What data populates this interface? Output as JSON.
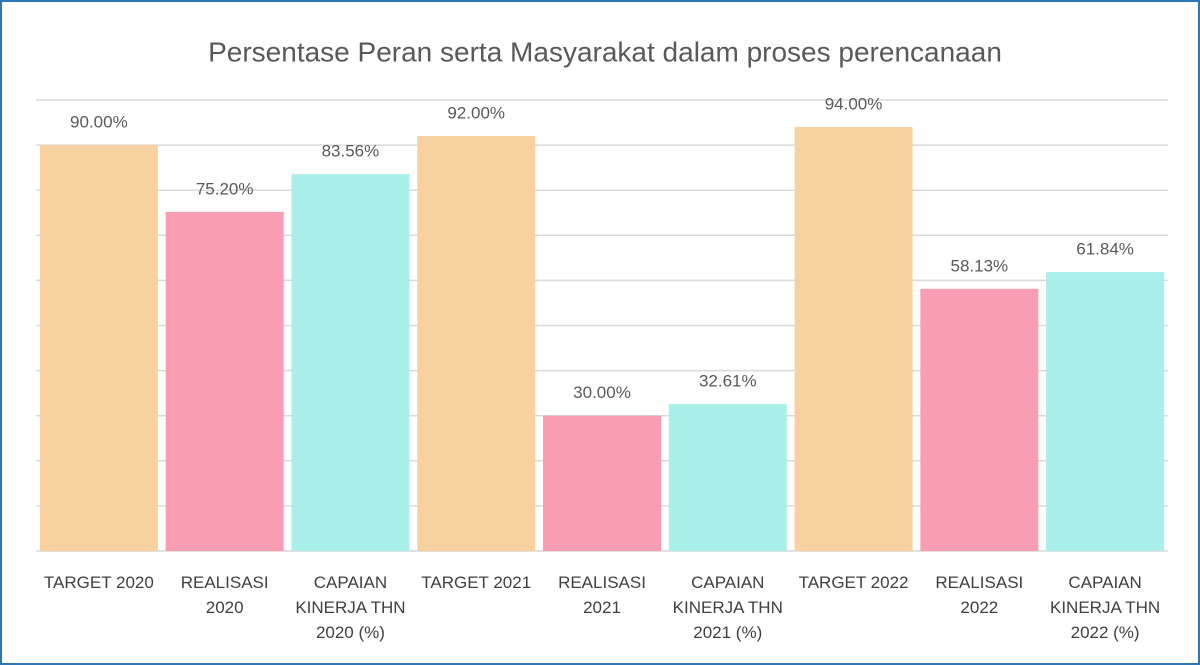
{
  "chart_data": {
    "type": "bar",
    "title": "Persentase Peran serta Masyarakat dalam proses perencanaan",
    "categories": [
      "TARGET 2020",
      "REALISASI 2020",
      "CAPAIAN KINERJA THN 2020 (%)",
      "TARGET 2021",
      "REALISASI 2021",
      "CAPAIAN KINERJA THN 2021 (%)",
      "TARGET 2022",
      "REALISASI 2022",
      "CAPAIAN KINERJA THN 2022 (%)"
    ],
    "values": [
      90,
      75.2,
      83.56,
      92,
      30,
      32.61,
      94,
      58.13,
      61.84
    ],
    "value_labels": [
      "90.00%",
      "75.20%",
      "83.56%",
      "92.00%",
      "30.00%",
      "32.61%",
      "94.00%",
      "58.13%",
      "61.84%"
    ],
    "colors": [
      "#f8d1a0",
      "#f99db3",
      "#a9efea",
      "#f8d1a0",
      "#f99db3",
      "#a9efea",
      "#f8d1a0",
      "#f99db3",
      "#a9efea"
    ],
    "ylim": [
      0,
      100
    ],
    "yticks": [
      0,
      10,
      20,
      30,
      40,
      50,
      60,
      70,
      80,
      90,
      100
    ],
    "grid": true
  }
}
